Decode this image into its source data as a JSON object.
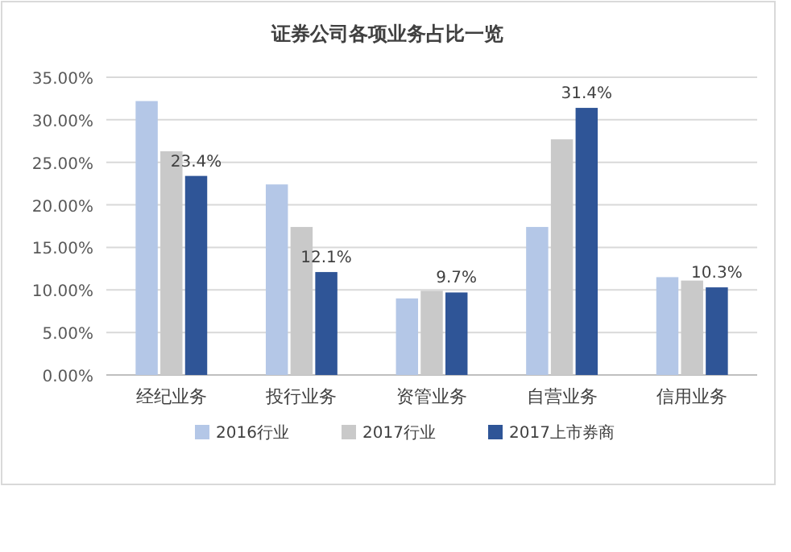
{
  "chart_data": {
    "type": "bar",
    "title": "证券公司各项业务占比一览",
    "categories": [
      "经纪业务",
      "投行业务",
      "资管业务",
      "自营业务",
      "信用业务"
    ],
    "series": [
      {
        "name": "2016行业",
        "color": "#b4c7e7",
        "values": [
          32.2,
          22.4,
          9.0,
          17.4,
          11.5
        ]
      },
      {
        "name": "2017行业",
        "color": "#c9c9c9",
        "values": [
          26.3,
          17.4,
          9.9,
          27.7,
          11.1
        ]
      },
      {
        "name": "2017上市券商",
        "color": "#2f5597",
        "values": [
          23.4,
          12.1,
          9.7,
          31.4,
          10.3
        ],
        "value_labels": [
          "23.4%",
          "12.1%",
          "9.7%",
          "31.4%",
          "10.3%"
        ]
      }
    ],
    "ylim": [
      0,
      35
    ],
    "yticks": [
      {
        "value": 0,
        "label": "0.00%"
      },
      {
        "value": 5,
        "label": "5.00%"
      },
      {
        "value": 10,
        "label": "10.00%"
      },
      {
        "value": 15,
        "label": "15.00%"
      },
      {
        "value": 20,
        "label": "20.00%"
      },
      {
        "value": 25,
        "label": "25.00%"
      },
      {
        "value": 30,
        "label": "30.00%"
      },
      {
        "value": 35,
        "label": "35.00%"
      }
    ],
    "grid": "y",
    "legend": "bottom"
  }
}
